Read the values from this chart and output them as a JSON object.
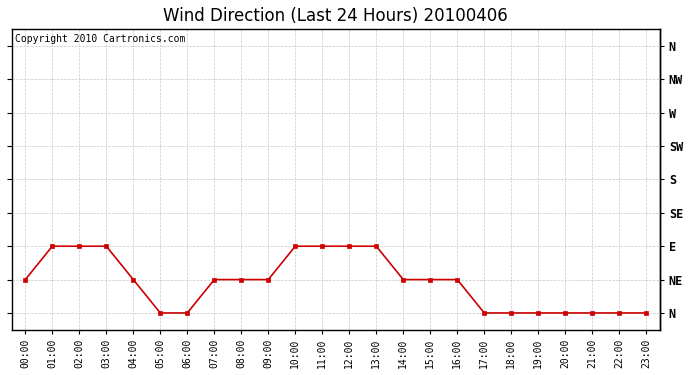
{
  "title": "Wind Direction (Last 24 Hours) 20100406",
  "copyright": "Copyright 2010 Cartronics.com",
  "x_labels": [
    "00:00",
    "01:00",
    "02:00",
    "03:00",
    "04:00",
    "05:00",
    "06:00",
    "07:00",
    "08:00",
    "09:00",
    "10:00",
    "11:00",
    "12:00",
    "13:00",
    "14:00",
    "15:00",
    "16:00",
    "17:00",
    "18:00",
    "19:00",
    "20:00",
    "21:00",
    "22:00",
    "23:00"
  ],
  "y_ticks": [
    0,
    1,
    2,
    3,
    4,
    5,
    6,
    7,
    8
  ],
  "y_labels_top_to_bottom": [
    "N",
    "NW",
    "W",
    "SW",
    "S",
    "SE",
    "E",
    "NE",
    "N"
  ],
  "y_labels_bottom_to_top": [
    "N",
    "NE",
    "E",
    "SE",
    "S",
    "SW",
    "W",
    "NW",
    "N"
  ],
  "data_values": [
    1,
    2,
    2,
    2,
    1,
    0,
    0,
    1,
    1,
    1,
    2,
    2,
    2,
    2,
    1,
    1,
    1,
    0,
    0,
    0,
    0,
    0,
    0,
    0
  ],
  "line_color": "#cc0000",
  "marker": "s",
  "marker_size": 3,
  "background_color": "#ffffff",
  "grid_color": "#c8c8c8",
  "title_fontsize": 12,
  "copyright_fontsize": 7
}
